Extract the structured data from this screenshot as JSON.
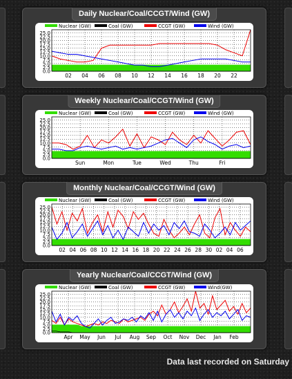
{
  "footer_text": "Data last recorded on Saturday",
  "colors": {
    "nuclear": "#33dd00",
    "coal": "#000000",
    "ccgt": "#ee0000",
    "wind": "#0000ee"
  },
  "chart_data": [
    {
      "type": "line",
      "title": "Daily Nuclear/Coal/CCGT/Wind (GW)",
      "legend": [
        "Nuclear (GW)",
        "Coal (GW)",
        "CCGT (GW)",
        "Wind (GW)"
      ],
      "x": [
        0,
        1,
        2,
        3,
        4,
        5,
        6,
        7,
        8,
        9,
        10,
        11,
        12,
        13,
        14,
        15,
        16,
        17,
        18,
        19,
        20,
        21,
        22,
        23,
        24
      ],
      "xticks": [
        "02",
        "04",
        "06",
        "08",
        "10",
        "12",
        "14",
        "16",
        "18",
        "20",
        "22"
      ],
      "yticks": [
        "0.0",
        "2.5",
        "5.0",
        "7.5",
        "10.0",
        "12.5",
        "15.0",
        "17.5",
        "20.0",
        "22.5",
        "25.0"
      ],
      "ylim": [
        0,
        27
      ],
      "series": [
        {
          "name": "Nuclear (GW)",
          "values": [
            4.0,
            4.0,
            4.0,
            4.0,
            4.0,
            4.0,
            4.0,
            4.0,
            4.0,
            4.0,
            4.0,
            4.0,
            4.0,
            4.0,
            4.0,
            4.0,
            4.0,
            4.0,
            4.0,
            4.0,
            4.0,
            4.0,
            4.0,
            4.0,
            4.0
          ]
        },
        {
          "name": "Coal (GW)",
          "values": [
            0,
            0,
            0,
            0,
            0,
            0,
            0,
            0,
            0,
            0,
            0,
            0,
            0,
            0,
            0,
            0,
            0,
            0,
            0,
            0,
            0,
            0,
            0,
            0,
            0
          ]
        },
        {
          "name": "CCGT (GW)",
          "values": [
            10,
            8,
            7,
            6,
            6,
            7,
            15,
            17,
            17,
            17,
            17,
            17,
            17,
            18,
            18,
            18,
            18,
            18,
            18,
            18,
            17,
            14,
            12,
            10,
            27
          ]
        },
        {
          "name": "Wind (GW)",
          "values": [
            13,
            12,
            11,
            11,
            10,
            9,
            8,
            7,
            6,
            5,
            4,
            4,
            3,
            3,
            4,
            5,
            6,
            7,
            8,
            8,
            8,
            8,
            7,
            6,
            6
          ]
        }
      ]
    },
    {
      "type": "line",
      "title": "Weekly Nuclear/Coal/CCGT/Wind (GW)",
      "legend": [
        "Nuclear (GW)",
        "Coal (GW)",
        "CCGT (GW)",
        "Wind (GW)"
      ],
      "x": [
        0,
        1,
        2,
        3,
        4,
        5,
        6,
        7,
        8,
        9,
        10,
        11,
        12,
        13,
        14,
        15,
        16,
        17,
        18,
        19,
        20,
        21,
        22,
        23,
        24,
        25,
        26,
        27,
        28
      ],
      "xticks": [
        "Sun",
        "Mon",
        "Tue",
        "Wed",
        "Thu",
        "Fri"
      ],
      "yticks": [
        "0.0",
        "2.5",
        "5.0",
        "7.5",
        "10.0",
        "12.5",
        "15.0",
        "17.5",
        "20.0",
        "22.5",
        "25.0"
      ],
      "ylim": [
        0,
        27
      ],
      "series": [
        {
          "name": "Nuclear (GW)",
          "values": [
            4.5,
            4.5,
            4.5,
            4.5,
            4.5,
            4.5,
            4.5,
            4.5,
            4.5,
            4.5,
            4.5,
            4.5,
            4.5,
            4.5,
            4.5,
            4.5,
            4.5,
            4.5,
            4.5,
            4.5,
            4.5,
            4.5,
            4.5,
            4.5,
            4.5,
            4.5,
            4.5,
            4.5,
            4.5
          ]
        },
        {
          "name": "Coal (GW)",
          "values": [
            0,
            0,
            0,
            0,
            0,
            0,
            0,
            0,
            0,
            0,
            0,
            0,
            0,
            0,
            0,
            0,
            0,
            0,
            0,
            0,
            0,
            0,
            0,
            0,
            0,
            0,
            0,
            0,
            0
          ]
        },
        {
          "name": "CCGT (GW)",
          "values": [
            10,
            10,
            9,
            6,
            8,
            15,
            7,
            12,
            10,
            14,
            19,
            8,
            16,
            7,
            14,
            12,
            9,
            17,
            12,
            9,
            15,
            10,
            18,
            13,
            8,
            12,
            17,
            18,
            9
          ]
        },
        {
          "name": "Wind (GW)",
          "values": [
            6,
            6,
            5,
            5,
            7,
            8,
            7,
            6,
            7,
            8,
            6,
            7,
            6,
            7,
            8,
            10,
            12,
            13,
            10,
            7,
            12,
            14,
            11,
            9,
            6,
            8,
            9,
            7,
            8
          ]
        }
      ]
    },
    {
      "type": "line",
      "title": "Monthly Nuclear/Coal/CCGT/Wind (GW)",
      "legend": [
        "Nuclear (GW)",
        "Coal (GW)",
        "CCGT (GW)",
        "Wind (GW)"
      ],
      "x": [
        0,
        1,
        2,
        3,
        4,
        5,
        6,
        7,
        8,
        9,
        10,
        11,
        12,
        13,
        14,
        15,
        16,
        17,
        18,
        19,
        20,
        21,
        22,
        23,
        24,
        25,
        26,
        27,
        28,
        29,
        30,
        31,
        32,
        33,
        34,
        35,
        36,
        37,
        38,
        39
      ],
      "xticks": [
        "02",
        "04",
        "06",
        "08",
        "10",
        "12",
        "14",
        "16",
        "18",
        "20",
        "22",
        "24",
        "26",
        "28",
        "30",
        "02",
        "04",
        "06"
      ],
      "yticks": [
        "0.0",
        "2.5",
        "5.0",
        "7.5",
        "10.0",
        "12.5",
        "15.0",
        "17.5",
        "20.0",
        "22.5",
        "25.0"
      ],
      "ylim": [
        0,
        27
      ],
      "series": [
        {
          "name": "Nuclear (GW)",
          "values": [
            4,
            4,
            4,
            4,
            4,
            4,
            4,
            4,
            4,
            4,
            4,
            4,
            4,
            4,
            4,
            4,
            4,
            4,
            4,
            4,
            4,
            4,
            4,
            4,
            4,
            4,
            4,
            4,
            4,
            4,
            4,
            4,
            4,
            4,
            4,
            4,
            4,
            4,
            4,
            4
          ]
        },
        {
          "name": "Coal (GW)",
          "values": [
            0,
            0,
            0,
            0,
            0,
            0,
            0,
            0,
            0,
            0,
            0,
            0,
            0,
            0,
            0,
            0,
            0,
            0,
            0,
            0,
            0,
            0,
            0,
            0,
            0,
            0,
            0,
            0,
            0,
            0,
            0,
            0,
            0,
            0,
            0,
            0,
            0,
            0,
            0,
            0
          ]
        },
        {
          "name": "CCGT (GW)",
          "values": [
            25,
            14,
            22,
            10,
            21,
            16,
            24,
            8,
            15,
            20,
            9,
            22,
            12,
            23,
            19,
            11,
            22,
            17,
            21,
            14,
            8,
            6,
            17,
            10,
            5,
            8,
            12,
            7,
            14,
            20,
            8,
            5,
            18,
            24,
            7,
            15,
            10,
            6,
            12,
            9
          ]
        },
        {
          "name": "Wind (GW)",
          "values": [
            12,
            4,
            8,
            15,
            5,
            9,
            14,
            6,
            11,
            16,
            7,
            13,
            5,
            10,
            4,
            12,
            9,
            6,
            15,
            8,
            14,
            10,
            13,
            7,
            15,
            11,
            16,
            9,
            8,
            6,
            14,
            10,
            5,
            8,
            12,
            7,
            15,
            10,
            13,
            16
          ]
        }
      ]
    },
    {
      "type": "line",
      "title": "Yearly Nuclear/Coal/CCGT/Wind (GW)",
      "legend": [
        "Nuclear (GW)",
        "Coal (GW)",
        "CCGT (GW)",
        "Wind(GW)"
      ],
      "x": [
        0,
        1,
        2,
        3,
        4,
        5,
        6,
        7,
        8,
        9,
        10,
        11,
        12,
        13,
        14,
        15,
        16,
        17,
        18,
        19,
        20,
        21,
        22,
        23,
        24,
        25,
        26,
        27,
        28,
        29,
        30,
        31,
        32,
        33,
        34,
        35,
        36,
        37,
        38,
        39,
        40,
        41,
        42,
        43,
        44,
        45,
        46,
        47
      ],
      "xticks": [
        "Apr",
        "May",
        "Jun",
        "Jul",
        "Aug",
        "Sep",
        "Oct",
        "Nov",
        "Dec",
        "Jan",
        "Feb"
      ],
      "yticks": [
        "0.0",
        "2.5",
        "5.0",
        "7.5",
        "10.0",
        "12.5",
        "15.0",
        "17.5",
        "20.0",
        "22.5",
        "25.0"
      ],
      "ylim": [
        0,
        27
      ],
      "series": [
        {
          "name": "Nuclear (GW)",
          "values": [
            5,
            5,
            5,
            5,
            5,
            5,
            5,
            4,
            4,
            4,
            4,
            4,
            4,
            4,
            4,
            4,
            4,
            4,
            4,
            4,
            4,
            4,
            4,
            4,
            4,
            4,
            4,
            4,
            4,
            4,
            4,
            4,
            4,
            4,
            4,
            4,
            4,
            4,
            4,
            4,
            4,
            4,
            4,
            4,
            4,
            4,
            4,
            4
          ]
        },
        {
          "name": "Coal (GW)",
          "values": [
            1,
            1,
            0.5,
            0.5,
            0.5,
            0,
            0,
            0,
            0,
            0,
            0,
            0,
            0,
            0,
            0,
            0,
            0,
            0,
            0,
            0,
            0,
            0,
            0,
            0,
            0,
            0,
            0,
            0,
            0,
            0,
            0,
            0,
            0,
            0,
            0,
            0,
            0,
            0,
            0,
            0,
            0,
            0,
            0,
            0,
            0,
            0,
            0,
            0
          ]
        },
        {
          "name": "CCGT (GW)",
          "values": [
            8,
            6,
            10,
            5,
            9,
            7,
            6,
            5,
            4,
            5,
            6,
            5,
            7,
            6,
            8,
            7,
            6,
            9,
            7,
            8,
            9,
            10,
            8,
            12,
            14,
            11,
            18,
            12,
            15,
            20,
            13,
            17,
            22,
            14,
            27,
            16,
            19,
            12,
            24,
            15,
            18,
            21,
            14,
            17,
            12,
            19,
            13,
            16
          ]
        },
        {
          "name": "Wind (GW)",
          "values": [
            14,
            7,
            12,
            5,
            10,
            8,
            11,
            6,
            4,
            3,
            6,
            9,
            5,
            8,
            10,
            6,
            7,
            9,
            8,
            10,
            7,
            11,
            9,
            13,
            8,
            14,
            7,
            12,
            15,
            10,
            13,
            9,
            14,
            11,
            16,
            8,
            12,
            15,
            10,
            13,
            11,
            14,
            9,
            12,
            15,
            8,
            11,
            10
          ]
        }
      ]
    }
  ]
}
